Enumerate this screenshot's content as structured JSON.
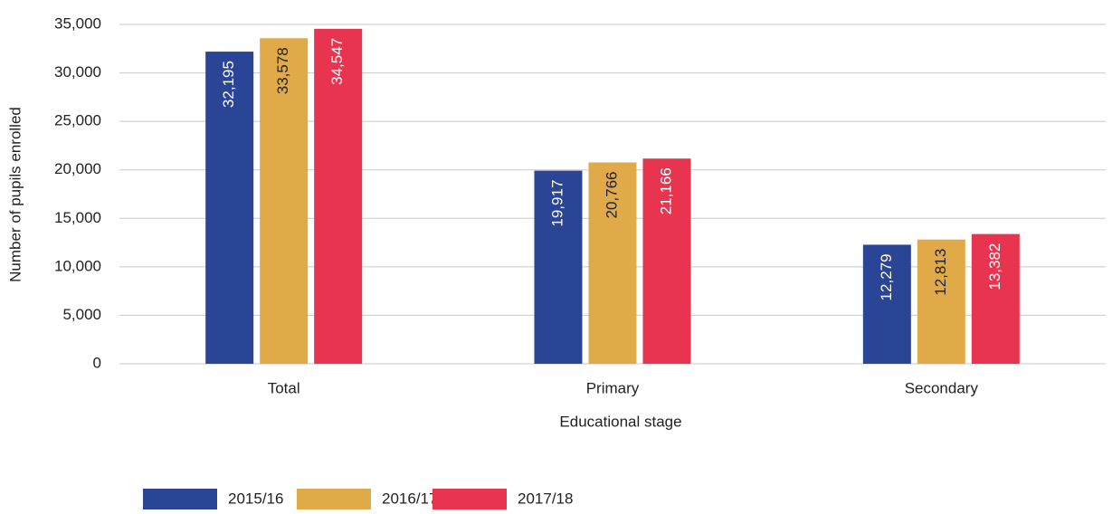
{
  "chart_data": {
    "type": "bar",
    "x_label": "Educational stage",
    "y_label": "Number of pupils enrolled",
    "categories": [
      "Total",
      "Primary",
      "Secondary"
    ],
    "series": [
      {
        "name": "2015/16",
        "color": "#2a4496",
        "values": [
          32195,
          19917,
          12279
        ],
        "value_labels": [
          "32,195",
          "19,917",
          "12,279"
        ]
      },
      {
        "name": "2016/17",
        "color": "#e0aa48",
        "values": [
          33578,
          20766,
          12813
        ],
        "value_labels": [
          "33,578",
          "20,766",
          "12,813"
        ]
      },
      {
        "name": "2017/18",
        "color": "#e8344e",
        "values": [
          34547,
          21166,
          13382
        ],
        "value_labels": [
          "34,547",
          "21,166",
          "13,382"
        ]
      }
    ],
    "ylim": [
      0,
      35000
    ],
    "yticks": [
      0,
      {
        "value": 5000,
        "label": "5,000"
      },
      {
        "value": 10000,
        "label": "10,000"
      },
      {
        "value": 15000,
        "label": "15,000"
      },
      {
        "value": 20000,
        "label": "20,000"
      },
      {
        "value": 25000,
        "label": "25,000"
      },
      {
        "value": 30000,
        "label": "30,000"
      },
      {
        "value": 35000,
        "label": "35,000"
      }
    ],
    "grid": true,
    "legend": "bottom"
  }
}
